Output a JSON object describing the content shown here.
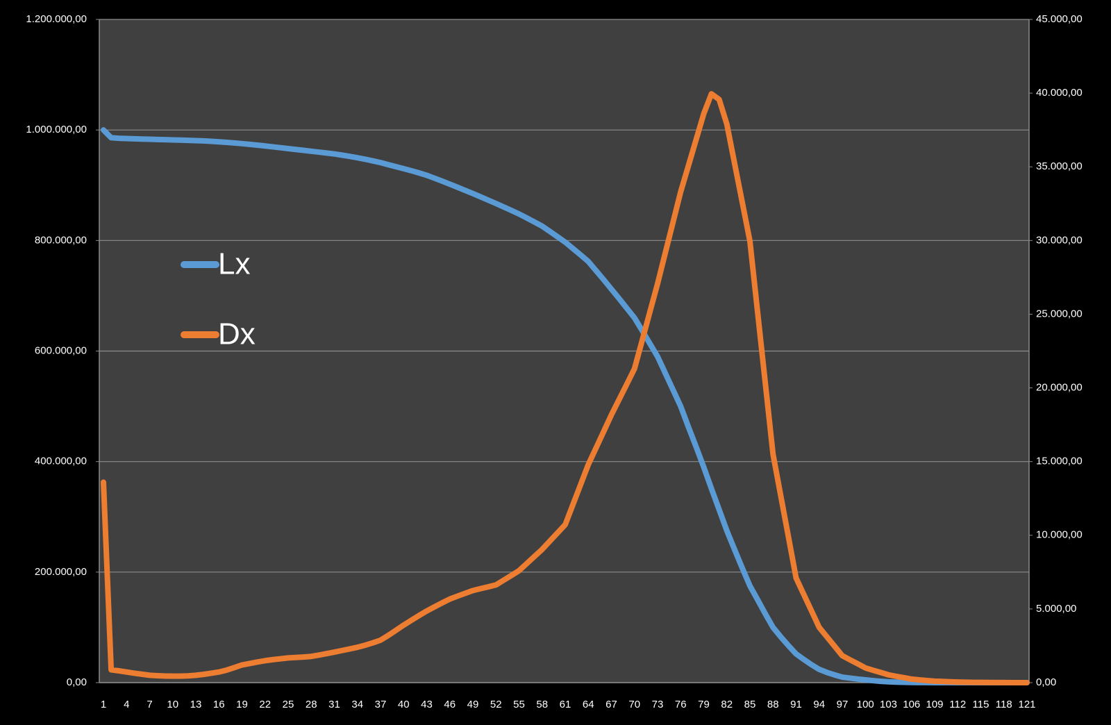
{
  "chart_data": {
    "type": "line",
    "categories": [
      1,
      null,
      null,
      4,
      null,
      null,
      7,
      null,
      null,
      10,
      null,
      null,
      13,
      null,
      null,
      16,
      null,
      null,
      19,
      null,
      null,
      22,
      null,
      null,
      25,
      null,
      null,
      28,
      null,
      null,
      31,
      null,
      null,
      34,
      null,
      null,
      37,
      null,
      null,
      40,
      null,
      null,
      43,
      null,
      null,
      46,
      null,
      null,
      49,
      null,
      null,
      52,
      null,
      null,
      55,
      null,
      null,
      58,
      null,
      null,
      61,
      null,
      null,
      64,
      null,
      null,
      67,
      null,
      null,
      70,
      null,
      null,
      73,
      null,
      null,
      76,
      null,
      null,
      79,
      null,
      null,
      82,
      null,
      null,
      85,
      null,
      null,
      88,
      null,
      null,
      91,
      null,
      null,
      94,
      null,
      null,
      97,
      null,
      null,
      100,
      null,
      null,
      103,
      null,
      null,
      106,
      null,
      null,
      109,
      null,
      null,
      112,
      null,
      null,
      115,
      null,
      null,
      118,
      null,
      null,
      121
    ],
    "series": [
      {
        "name": "Lx",
        "color": "#5b9bd5",
        "axis": "y",
        "values": [
          1000000,
          986000,
          985000,
          984500,
          984000,
          983600,
          983200,
          982800,
          982400,
          982000,
          981600,
          981200,
          980800,
          980200,
          979500,
          978600,
          977600,
          976500,
          975300,
          974000,
          972600,
          971100,
          969500,
          967900,
          966300,
          964700,
          963100,
          961500,
          959900,
          958300,
          956600,
          954500,
          952200,
          949700,
          947000,
          944100,
          941000,
          937200,
          933600,
          930000,
          926300,
          922300,
          918000,
          912800,
          907500,
          902000,
          896400,
          890700,
          885000,
          879000,
          873000,
          867000,
          860700,
          854400,
          848000,
          840800,
          833500,
          826000,
          816500,
          806800,
          797000,
          785500,
          773900,
          762000,
          745500,
          729000,
          712000,
          695000,
          677500,
          660000,
          637000,
          613500,
          590000,
          560000,
          530000,
          500000,
          463000,
          427000,
          390000,
          351000,
          313000,
          275000,
          241000,
          207500,
          175000,
          150000,
          124500,
          100000,
          83000,
          67000,
          52000,
          42000,
          32500,
          24000,
          18500,
          14000,
          10000,
          8200,
          6500,
          5000,
          3600,
          2400,
          1500,
          1000,
          600,
          350,
          200,
          110,
          60,
          30,
          15,
          8,
          4,
          2,
          1,
          0,
          0,
          0,
          0,
          0,
          0
        ]
      },
      {
        "name": "Dx",
        "color": "#ed7d31",
        "axis": "y2",
        "values": [
          13600,
          870,
          800,
          720,
          640,
          570,
          500,
          470,
          450,
          440,
          440,
          460,
          500,
          560,
          640,
          720,
          850,
          1020,
          1200,
          1300,
          1400,
          1490,
          1560,
          1620,
          1680,
          1710,
          1740,
          1780,
          1870,
          1970,
          2070,
          2180,
          2290,
          2400,
          2540,
          2700,
          2880,
          3200,
          3550,
          3900,
          4230,
          4550,
          4860,
          5140,
          5410,
          5670,
          5870,
          6060,
          6250,
          6380,
          6500,
          6630,
          6950,
          7270,
          7600,
          8080,
          8560,
          9040,
          9600,
          10160,
          10720,
          12080,
          13440,
          14800,
          15920,
          17040,
          18170,
          19210,
          20250,
          21300,
          23220,
          25150,
          27070,
          29150,
          31220,
          33300,
          35060,
          36830,
          38600,
          39950,
          39570,
          37900,
          35250,
          32600,
          29950,
          25130,
          20320,
          15500,
          12700,
          9900,
          7100,
          5980,
          4870,
          3750,
          3110,
          2470,
          1830,
          1550,
          1280,
          1000,
          840,
          690,
          530,
          430,
          340,
          240,
          190,
          140,
          100,
          80,
          60,
          40,
          30,
          20,
          15,
          10,
          7,
          5,
          3,
          2,
          1
        ]
      }
    ],
    "ylim": [
      0,
      1200000
    ],
    "yticks": [
      {
        "value": 0,
        "label": "0,00"
      },
      {
        "value": 200000,
        "label": "200.000,00"
      },
      {
        "value": 400000,
        "label": "400.000,00"
      },
      {
        "value": 600000,
        "label": "600.000,00"
      },
      {
        "value": 800000,
        "label": "800.000,00"
      },
      {
        "value": 1000000,
        "label": "1.000.000,00"
      },
      {
        "value": 1200000,
        "label": "1.200.000,00"
      }
    ],
    "y2lim": [
      0,
      45000
    ],
    "y2ticks": [
      {
        "value": 0,
        "label": "0,00"
      },
      {
        "value": 5000,
        "label": "5.000,00"
      },
      {
        "value": 10000,
        "label": "10.000,00"
      },
      {
        "value": 15000,
        "label": "15.000,00"
      },
      {
        "value": 20000,
        "label": "20.000,00"
      },
      {
        "value": 25000,
        "label": "25.000,00"
      },
      {
        "value": 30000,
        "label": "30.000,00"
      },
      {
        "value": 35000,
        "label": "35.000,00"
      },
      {
        "value": 40000,
        "label": "40.000,00"
      },
      {
        "value": 45000,
        "label": "45.000,00"
      }
    ],
    "grid": true,
    "legend": "left"
  }
}
